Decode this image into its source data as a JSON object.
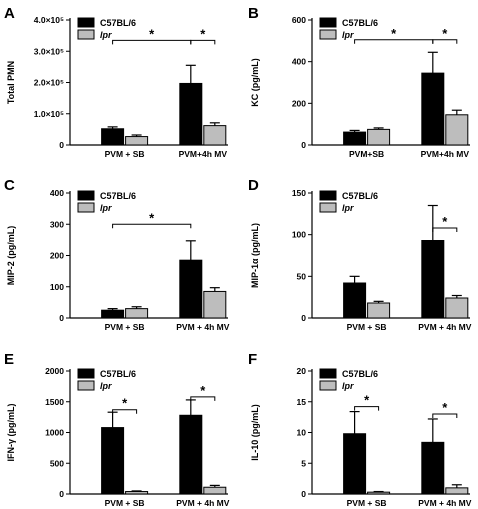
{
  "colors": {
    "c57": "#000000",
    "lpr": "#bdbdbd"
  },
  "chart_data": [
    {
      "panel": "A",
      "type": "bar",
      "ylabel": "Total PMN",
      "yticks": [
        0,
        100000,
        200000,
        300000,
        400000
      ],
      "yticklabels": [
        "0",
        "1.0×10⁵",
        "2.0×10⁵",
        "3.0×10⁵",
        "4.0×10⁵"
      ],
      "ylim": [
        0,
        400000
      ],
      "categories": [
        "PVM + SB",
        "PVM+4h MV"
      ],
      "series": [
        {
          "name": "C57BL/6",
          "values": [
            52000,
            197000
          ],
          "errors": [
            6000,
            58000
          ]
        },
        {
          "name": "lpr",
          "values": [
            27000,
            62000
          ],
          "errors": [
            5000,
            9000
          ]
        }
      ],
      "significance": [
        {
          "from": [
            0,
            0
          ],
          "to": [
            1,
            0
          ],
          "height": 335000,
          "label": "*"
        },
        {
          "from": [
            1,
            0
          ],
          "to": [
            1,
            1
          ],
          "height": 335000,
          "label": "*"
        }
      ]
    },
    {
      "panel": "B",
      "type": "bar",
      "ylabel": "KC (pg/mL)",
      "yticks": [
        0,
        200,
        400,
        600
      ],
      "yticklabels": [
        "0",
        "200",
        "400",
        "600"
      ],
      "ylim": [
        0,
        600
      ],
      "categories": [
        "PVM+SB",
        "PVM+4h MV"
      ],
      "series": [
        {
          "name": "C57BL/6",
          "values": [
            62,
            345
          ],
          "errors": [
            8,
            100
          ]
        },
        {
          "name": "lpr",
          "values": [
            75,
            145
          ],
          "errors": [
            7,
            22
          ]
        }
      ],
      "significance": [
        {
          "from": [
            0,
            0
          ],
          "to": [
            1,
            0
          ],
          "height": 505,
          "label": "*"
        },
        {
          "from": [
            1,
            0
          ],
          "to": [
            1,
            1
          ],
          "height": 505,
          "label": "*"
        }
      ]
    },
    {
      "panel": "C",
      "type": "bar",
      "ylabel": "MIP-2 (pg/mL)",
      "yticks": [
        0,
        100,
        200,
        300,
        400
      ],
      "yticklabels": [
        "0",
        "100",
        "200",
        "300",
        "400"
      ],
      "ylim": [
        0,
        400
      ],
      "categories": [
        "PVM + SB",
        "PVM + 4h MV"
      ],
      "series": [
        {
          "name": "C57BL/6",
          "values": [
            25,
            185
          ],
          "errors": [
            5,
            62
          ]
        },
        {
          "name": "lpr",
          "values": [
            30,
            85
          ],
          "errors": [
            6,
            12
          ]
        }
      ],
      "significance": [
        {
          "from": [
            0,
            0
          ],
          "to": [
            1,
            0
          ],
          "height": 300,
          "label": "*"
        }
      ]
    },
    {
      "panel": "D",
      "type": "bar",
      "ylabel": "MIP-1α (pg/mL)",
      "yticks": [
        0,
        50,
        100,
        150
      ],
      "yticklabels": [
        "0",
        "50",
        "100",
        "150"
      ],
      "ylim": [
        0,
        150
      ],
      "categories": [
        "PVM + SB",
        "PVM + 4h MV"
      ],
      "series": [
        {
          "name": "C57BL/6",
          "values": [
            42,
            93
          ],
          "errors": [
            8,
            42
          ]
        },
        {
          "name": "lpr",
          "values": [
            18,
            24
          ],
          "errors": [
            2,
            3
          ]
        }
      ],
      "significance": [
        {
          "from": [
            1,
            0
          ],
          "to": [
            1,
            1
          ],
          "height": 108,
          "label": "*"
        }
      ]
    },
    {
      "panel": "E",
      "type": "bar",
      "ylabel": "IFN-γ (pg/mL)",
      "yticks": [
        0,
        500,
        1000,
        1500,
        2000
      ],
      "yticklabels": [
        "0",
        "500",
        "1000",
        "1500",
        "2000"
      ],
      "ylim": [
        0,
        2000
      ],
      "categories": [
        "PVM + SB",
        "PVM + 4h MV"
      ],
      "series": [
        {
          "name": "C57BL/6",
          "values": [
            1080,
            1280
          ],
          "errors": [
            250,
            250
          ]
        },
        {
          "name": "lpr",
          "values": [
            40,
            110
          ],
          "errors": [
            10,
            30
          ]
        }
      ],
      "significance": [
        {
          "from": [
            0,
            0
          ],
          "to": [
            0,
            1
          ],
          "height": 1370,
          "label": "*"
        },
        {
          "from": [
            1,
            0
          ],
          "to": [
            1,
            1
          ],
          "height": 1580,
          "label": "*"
        }
      ]
    },
    {
      "panel": "F",
      "type": "bar",
      "ylabel": "IL-10 (pg/mL)",
      "yticks": [
        0,
        5,
        10,
        15,
        20
      ],
      "yticklabels": [
        "0",
        "5",
        "10",
        "15",
        "20"
      ],
      "ylim": [
        0,
        20
      ],
      "categories": [
        "PVM + SB",
        "PVM + 4h MV"
      ],
      "series": [
        {
          "name": "C57BL/6",
          "values": [
            9.8,
            8.4
          ],
          "errors": [
            3.6,
            3.8
          ]
        },
        {
          "name": "lpr",
          "values": [
            0.3,
            1.0
          ],
          "errors": [
            0.1,
            0.5
          ]
        }
      ],
      "significance": [
        {
          "from": [
            0,
            0
          ],
          "to": [
            0,
            1
          ],
          "height": 14.2,
          "label": "*"
        },
        {
          "from": [
            1,
            0
          ],
          "to": [
            1,
            1
          ],
          "height": 13.0,
          "label": "*"
        }
      ]
    }
  ]
}
